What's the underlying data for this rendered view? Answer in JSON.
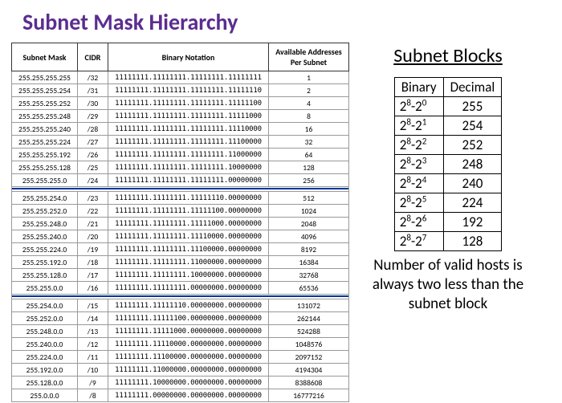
{
  "colors": {
    "title": "#5b2d90",
    "separator": "#003399",
    "border": "#333333",
    "cell_border": "#999999",
    "background": "#ffffff"
  },
  "title": "Subnet Mask Hierarchy",
  "main_table": {
    "columns": [
      "Subnet Mask",
      "CIDR",
      "Binary Notation",
      "Available Addresses Per Subnet"
    ],
    "groups": [
      {
        "rows": [
          [
            "255.255.255.255",
            "/32",
            "11111111.11111111.11111111.11111111",
            "1"
          ],
          [
            "255.255.255.254",
            "/31",
            "11111111.11111111.11111111.11111110",
            "2"
          ],
          [
            "255.255.255.252",
            "/30",
            "11111111.11111111.11111111.11111100",
            "4"
          ],
          [
            "255.255.255.248",
            "/29",
            "11111111.11111111.11111111.11111000",
            "8"
          ],
          [
            "255.255.255.240",
            "/28",
            "11111111.11111111.11111111.11110000",
            "16"
          ],
          [
            "255.255.255.224",
            "/27",
            "11111111.11111111.11111111.11100000",
            "32"
          ],
          [
            "255.255.255.192",
            "/26",
            "11111111.11111111.11111111.11000000",
            "64"
          ],
          [
            "255.255.255.128",
            "/25",
            "11111111.11111111.11111111.10000000",
            "128"
          ],
          [
            "255.255.255.0",
            "/24",
            "11111111.11111111.11111111.00000000",
            "256"
          ]
        ]
      },
      {
        "rows": [
          [
            "255.255.254.0",
            "/23",
            "11111111.11111111.11111110.00000000",
            "512"
          ],
          [
            "255.255.252.0",
            "/22",
            "11111111.11111111.11111100.00000000",
            "1024"
          ],
          [
            "255.255.248.0",
            "/21",
            "11111111.11111111.11111000.00000000",
            "2048"
          ],
          [
            "255.255.240.0",
            "/20",
            "11111111.11111111.11110000.00000000",
            "4096"
          ],
          [
            "255.255.224.0",
            "/19",
            "11111111.11111111.11100000.00000000",
            "8192"
          ],
          [
            "255.255.192.0",
            "/18",
            "11111111.11111111.11000000.00000000",
            "16384"
          ],
          [
            "255.255.128.0",
            "/17",
            "11111111.11111111.10000000.00000000",
            "32768"
          ],
          [
            "255.255.0.0",
            "/16",
            "11111111.11111111.00000000.00000000",
            "65536"
          ]
        ]
      },
      {
        "rows": [
          [
            "255.254.0.0",
            "/15",
            "11111111.11111110.00000000.00000000",
            "131072"
          ],
          [
            "255.252.0.0",
            "/14",
            "11111111.11111100.00000000.00000000",
            "262144"
          ],
          [
            "255.248.0.0",
            "/13",
            "11111111.11111000.00000000.00000000",
            "524288"
          ],
          [
            "255.240.0.0",
            "/12",
            "11111111.11110000.00000000.00000000",
            "1048576"
          ],
          [
            "255.224.0.0",
            "/11",
            "11111111.11100000.00000000.00000000",
            "2097152"
          ],
          [
            "255.192.0.0",
            "/10",
            "11111111.11000000.00000000.00000000",
            "4194304"
          ],
          [
            "255.128.0.0",
            "/9",
            "11111111.10000000.00000000.00000000",
            "8388608"
          ],
          [
            "255.0.0.0",
            "/8",
            "11111111.00000000.00000000.00000000",
            "16777216"
          ]
        ]
      }
    ]
  },
  "side": {
    "title": "Subnet Blocks",
    "columns": [
      "Binary",
      "Decimal"
    ],
    "rows": [
      {
        "b": 8,
        "e": 0,
        "dec": "255"
      },
      {
        "b": 8,
        "e": 1,
        "dec": "254"
      },
      {
        "b": 8,
        "e": 2,
        "dec": "252"
      },
      {
        "b": 8,
        "e": 3,
        "dec": "248"
      },
      {
        "b": 8,
        "e": 4,
        "dec": "240"
      },
      {
        "b": 8,
        "e": 5,
        "dec": "224"
      },
      {
        "b": 8,
        "e": 6,
        "dec": "192"
      },
      {
        "b": 8,
        "e": 7,
        "dec": "128"
      }
    ],
    "caption": "Number of valid hosts is always two less than the subnet block"
  }
}
